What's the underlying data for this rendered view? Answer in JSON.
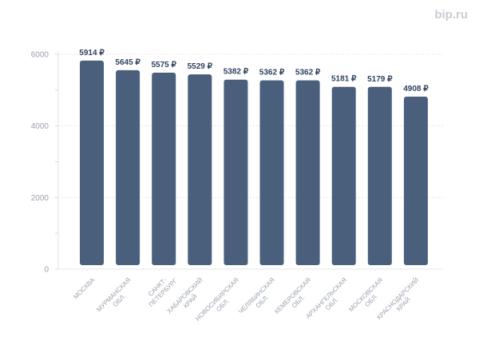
{
  "logo": "bip.ru",
  "chart_data": {
    "type": "bar",
    "categories": [
      [
        "МОСКВА"
      ],
      [
        "МУРМАНСКАЯ",
        "ОБЛ."
      ],
      [
        "САНКТ-",
        "ПЕТЕРБУРГ"
      ],
      [
        "ХАБАРОВСКИЙ",
        "КРАЙ"
      ],
      [
        "НОВОСИБИРСКАЯ",
        "ОБЛ."
      ],
      [
        "ЧЕЛЯБИНСКАЯ",
        "ОБЛ."
      ],
      [
        "КЕМЕРОВСКАЯ",
        "ОБЛ."
      ],
      [
        "АРХАНГЕЛЬСКАЯ",
        "ОБЛ."
      ],
      [
        "МОСКОВСКАЯ",
        "ОБЛ."
      ],
      [
        "КРАСНОДАРСКИЙ",
        "КРАЙ"
      ]
    ],
    "values": [
      5914,
      5645,
      5575,
      5529,
      5382,
      5362,
      5362,
      5181,
      5179,
      4908
    ],
    "data_labels": [
      "5914 ₽",
      "5645 ₽",
      "5575 ₽",
      "5529 ₽",
      "5382 ₽",
      "5362 ₽",
      "5362 ₽",
      "5181 ₽",
      "5179 ₽",
      "4908 ₽"
    ],
    "yticks": [
      0,
      2000,
      4000,
      6000
    ],
    "ylim": [
      0,
      6000
    ],
    "grid": true,
    "bar_color": "#4a5f7c",
    "label_color": "#2f4360",
    "tick_color": "#9aa0ad"
  }
}
